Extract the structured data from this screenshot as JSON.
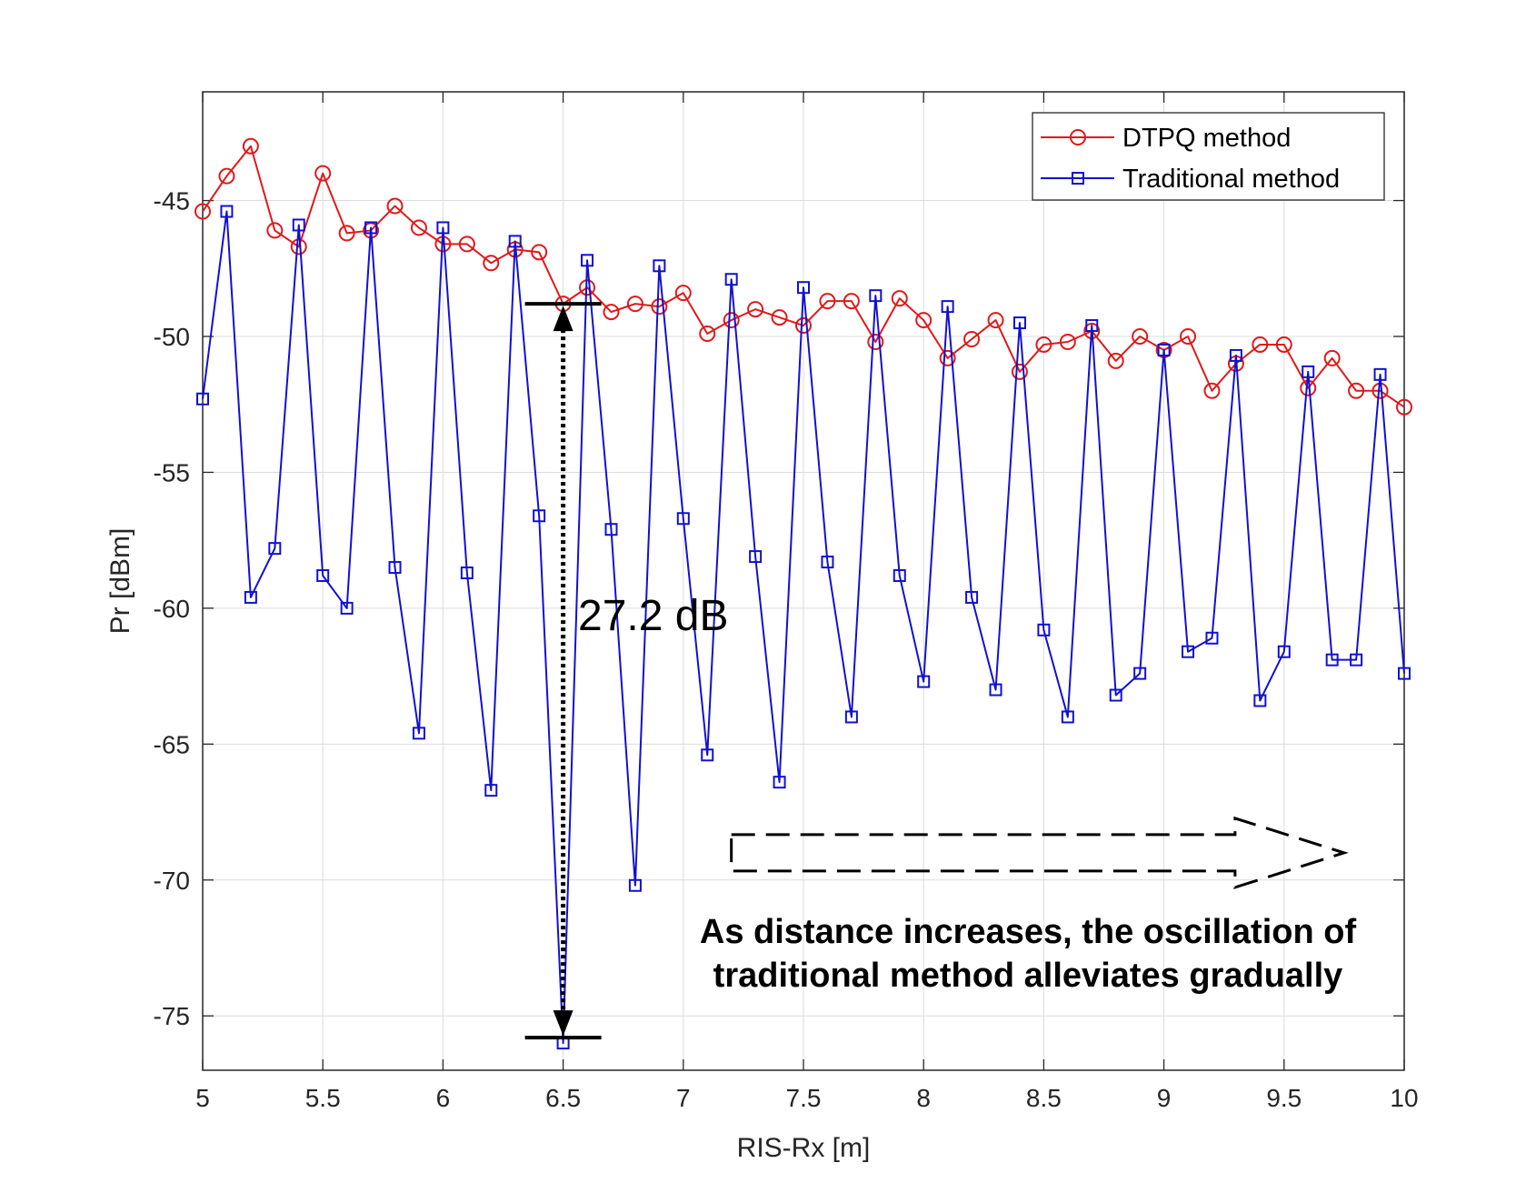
{
  "chart_data": {
    "type": "line",
    "title": "",
    "xlabel": "RIS-Rx [m]",
    "ylabel": "Pr [dBm]",
    "xlim": [
      5,
      10
    ],
    "ylim": [
      -77,
      -41
    ],
    "grid": true,
    "x_ticks": [
      5,
      5.5,
      6,
      6.5,
      7,
      7.5,
      8,
      8.5,
      9,
      9.5,
      10
    ],
    "x_tick_labels": [
      "5",
      "5.5",
      "6",
      "6.5",
      "7",
      "7.5",
      "8",
      "8.5",
      "9",
      "9.5",
      "10"
    ],
    "y_ticks": [
      -75,
      -70,
      -65,
      -60,
      -55,
      -50,
      -45
    ],
    "y_tick_labels": [
      "-75",
      "-70",
      "-65",
      "-60",
      "-55",
      "-50",
      "-45"
    ],
    "legend_position": "top-right",
    "x": [
      5.0,
      5.1,
      5.2,
      5.3,
      5.4,
      5.5,
      5.6,
      5.7,
      5.8,
      5.9,
      6.0,
      6.1,
      6.2,
      6.3,
      6.4,
      6.5,
      6.6,
      6.7,
      6.8,
      6.9,
      7.0,
      7.1,
      7.2,
      7.3,
      7.4,
      7.5,
      7.6,
      7.7,
      7.8,
      7.9,
      8.0,
      8.1,
      8.2,
      8.3,
      8.4,
      8.5,
      8.6,
      8.7,
      8.8,
      8.9,
      9.0,
      9.1,
      9.2,
      9.3,
      9.4,
      9.5,
      9.6,
      9.7,
      9.8,
      9.9,
      10.0
    ],
    "series": [
      {
        "name": "DTPQ method",
        "color": "#e0191a",
        "marker": "circle",
        "values": [
          -45.4,
          -44.1,
          -43.0,
          -46.1,
          -46.7,
          -44.0,
          -46.2,
          -46.1,
          -45.2,
          -46.0,
          -46.6,
          -46.6,
          -47.3,
          -46.8,
          -46.9,
          -48.8,
          -48.2,
          -49.1,
          -48.8,
          -48.9,
          -48.4,
          -49.9,
          -49.4,
          -49.0,
          -49.3,
          -49.6,
          -48.7,
          -48.7,
          -50.2,
          -48.6,
          -49.4,
          -50.8,
          -50.1,
          -49.4,
          -51.3,
          -50.3,
          -50.2,
          -49.8,
          -50.9,
          -50.0,
          -50.5,
          -50.0,
          -52.0,
          -51.0,
          -50.3,
          -50.3,
          -51.9,
          -50.8,
          -52.0,
          -52.0,
          -52.6
        ]
      },
      {
        "name": "Traditional method",
        "color": "#1111d0",
        "marker": "square",
        "values": [
          -52.3,
          -45.4,
          -59.6,
          -57.8,
          -45.9,
          -58.8,
          -60.0,
          -46.0,
          -58.5,
          -64.6,
          -46.0,
          -58.7,
          -66.7,
          -46.5,
          -56.6,
          -76.0,
          -47.2,
          -57.1,
          -70.2,
          -47.4,
          -56.7,
          -65.4,
          -47.9,
          -58.1,
          -66.4,
          -48.2,
          -58.3,
          -64.0,
          -48.5,
          -58.8,
          -62.7,
          -48.9,
          -59.6,
          -63.0,
          -49.5,
          -60.8,
          -64.0,
          -49.6,
          -63.2,
          -62.4,
          -50.5,
          -61.6,
          -61.1,
          -50.7,
          -63.4,
          -61.6,
          -51.3,
          -61.9,
          -61.9,
          -51.4,
          -62.4
        ]
      }
    ],
    "annotations": {
      "gap_label": "27.2 dB",
      "gap_x": 6.5,
      "gap_top": -48.8,
      "gap_bottom": -75.8,
      "arrow_from_x": 7.2,
      "arrow_to_x": 9.75,
      "arrow_y": -69.0,
      "note_line1": "As distance increases, the oscillation of",
      "note_line2": "traditional method alleviates gradually"
    }
  }
}
